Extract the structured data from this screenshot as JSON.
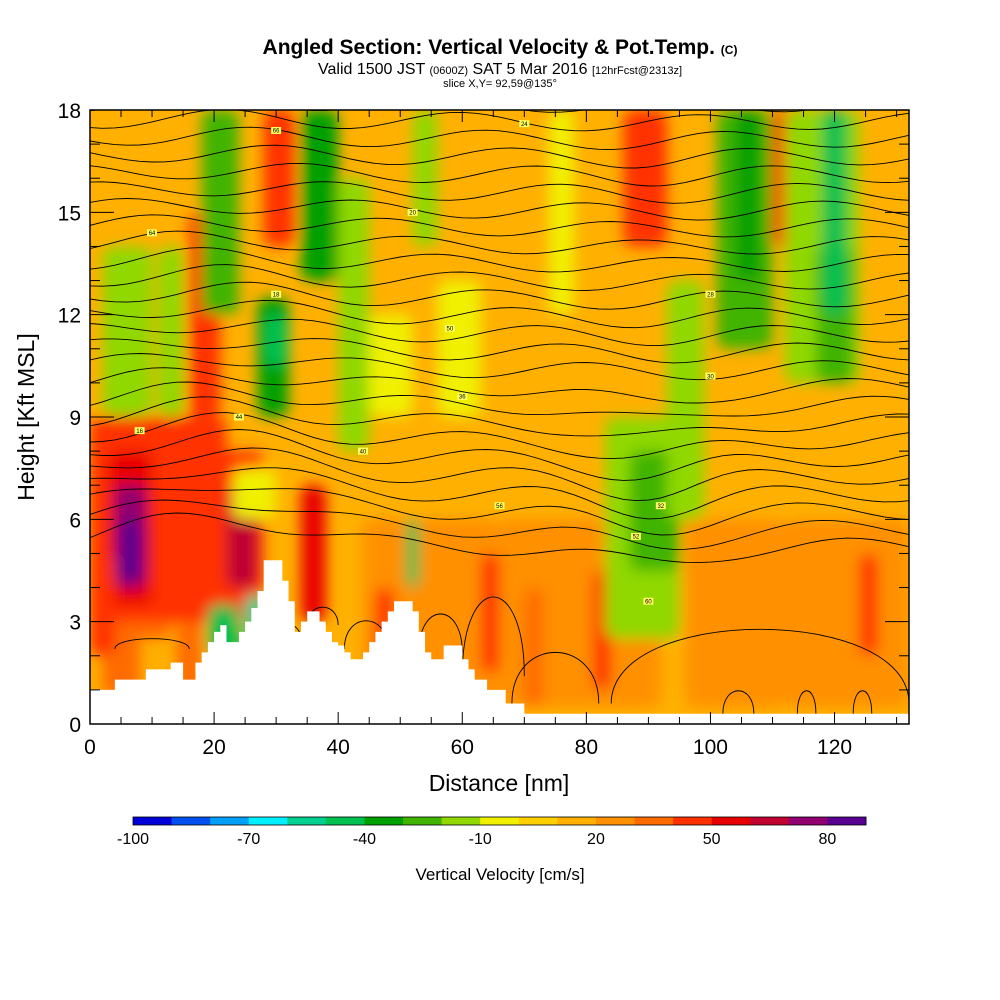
{
  "header": {
    "title": "Angled Section: Vertical Velocity & Pot.Temp.",
    "title_unit": "(C)",
    "valid_prefix": "Valid 1500 JST",
    "valid_zulu": "(0600Z)",
    "valid_date": "SAT 5 Mar 2016",
    "forecast": "[12hrFcst@2313z]",
    "slice": "slice X,Y= 92,59@135°"
  },
  "chart_data": {
    "type": "heatmap",
    "title": "Angled Section: Vertical Velocity & Pot.Temp.",
    "xlabel": "Distance [nm]",
    "ylabel": "Height [Kft MSL]",
    "xlim": [
      0,
      132
    ],
    "ylim": [
      0,
      18
    ],
    "x_ticks": [
      "0",
      "20",
      "40",
      "60",
      "80",
      "100",
      "120"
    ],
    "y_ticks": [
      "0",
      "3",
      "6",
      "9",
      "12",
      "15",
      "18"
    ],
    "x_tick_values": [
      0,
      20,
      40,
      60,
      80,
      100,
      120
    ],
    "y_tick_values": [
      0,
      3,
      6,
      9,
      12,
      15,
      18
    ],
    "colorbar": {
      "label": "Vertical Velocity [cm/s]",
      "tick_labels": [
        "-100",
        "-70",
        "-40",
        "-10",
        "20",
        "50",
        "80"
      ],
      "tick_values": [
        -100,
        -70,
        -40,
        -10,
        20,
        50,
        80
      ],
      "range": [
        -100,
        90
      ],
      "colors": [
        "#0000d8",
        "#0050f0",
        "#00a0f8",
        "#00f0ff",
        "#00d090",
        "#00c050",
        "#00a000",
        "#40b400",
        "#90d800",
        "#f0f000",
        "#ffd000",
        "#ffb000",
        "#ff9000",
        "#ff6a00",
        "#ff3000",
        "#e80000",
        "#c00030",
        "#900070",
        "#5a0090"
      ]
    },
    "theta_contour_labels": [
      "16",
      "18",
      "20",
      "24",
      "28",
      "30",
      "32",
      "36",
      "40",
      "44",
      "50",
      "52",
      "56",
      "60",
      "64",
      "66"
    ],
    "terrain": [
      [
        0,
        1
      ],
      [
        4,
        1
      ],
      [
        4,
        1.3
      ],
      [
        9,
        1.3
      ],
      [
        9,
        1.6
      ],
      [
        13,
        1.6
      ],
      [
        13,
        1.8
      ],
      [
        15,
        1.8
      ],
      [
        15,
        1.3
      ],
      [
        17,
        1.3
      ],
      [
        17,
        1.8
      ],
      [
        18,
        1.8
      ],
      [
        18,
        2.1
      ],
      [
        19,
        2.1
      ],
      [
        19,
        2.4
      ],
      [
        20,
        2.4
      ],
      [
        20,
        2.7
      ],
      [
        21,
        2.7
      ],
      [
        21,
        2.9
      ],
      [
        22,
        2.9
      ],
      [
        22,
        2.4
      ],
      [
        24,
        2.4
      ],
      [
        24,
        2.7
      ],
      [
        25,
        2.7
      ],
      [
        25,
        3.0
      ],
      [
        26,
        3.0
      ],
      [
        26,
        3.4
      ],
      [
        27,
        3.4
      ],
      [
        27,
        3.9
      ],
      [
        28,
        3.9
      ],
      [
        28,
        4.8
      ],
      [
        31,
        4.8
      ],
      [
        31,
        4.2
      ],
      [
        32,
        4.2
      ],
      [
        32,
        3.6
      ],
      [
        33,
        3.6
      ],
      [
        33,
        2.7
      ],
      [
        34,
        2.7
      ],
      [
        34,
        3.0
      ],
      [
        35,
        3.0
      ],
      [
        35,
        3.3
      ],
      [
        37,
        3.3
      ],
      [
        37,
        3.0
      ],
      [
        38,
        3.0
      ],
      [
        38,
        2.7
      ],
      [
        39,
        2.7
      ],
      [
        39,
        2.4
      ],
      [
        40,
        2.4
      ],
      [
        40,
        2.3
      ],
      [
        41,
        2.3
      ],
      [
        41,
        2.1
      ],
      [
        42,
        2.1
      ],
      [
        42,
        1.9
      ],
      [
        44,
        1.9
      ],
      [
        44,
        2.1
      ],
      [
        45,
        2.1
      ],
      [
        45,
        2.4
      ],
      [
        46,
        2.4
      ],
      [
        46,
        2.7
      ],
      [
        47,
        2.7
      ],
      [
        47,
        3.0
      ],
      [
        48,
        3.0
      ],
      [
        48,
        3.3
      ],
      [
        49,
        3.3
      ],
      [
        49,
        3.6
      ],
      [
        52,
        3.6
      ],
      [
        52,
        3.3
      ],
      [
        53,
        3.3
      ],
      [
        53,
        2.7
      ],
      [
        54,
        2.7
      ],
      [
        54,
        2.1
      ],
      [
        55,
        2.1
      ],
      [
        55,
        1.9
      ],
      [
        57,
        1.9
      ],
      [
        57,
        2.3
      ],
      [
        60,
        2.3
      ],
      [
        60,
        1.9
      ],
      [
        61,
        1.9
      ],
      [
        61,
        1.6
      ],
      [
        62,
        1.6
      ],
      [
        62,
        1.3
      ],
      [
        64,
        1.3
      ],
      [
        64,
        1.0
      ],
      [
        67,
        1.0
      ],
      [
        67,
        0.6
      ],
      [
        70,
        0.6
      ],
      [
        70,
        0.3
      ],
      [
        132,
        0.3
      ]
    ]
  }
}
